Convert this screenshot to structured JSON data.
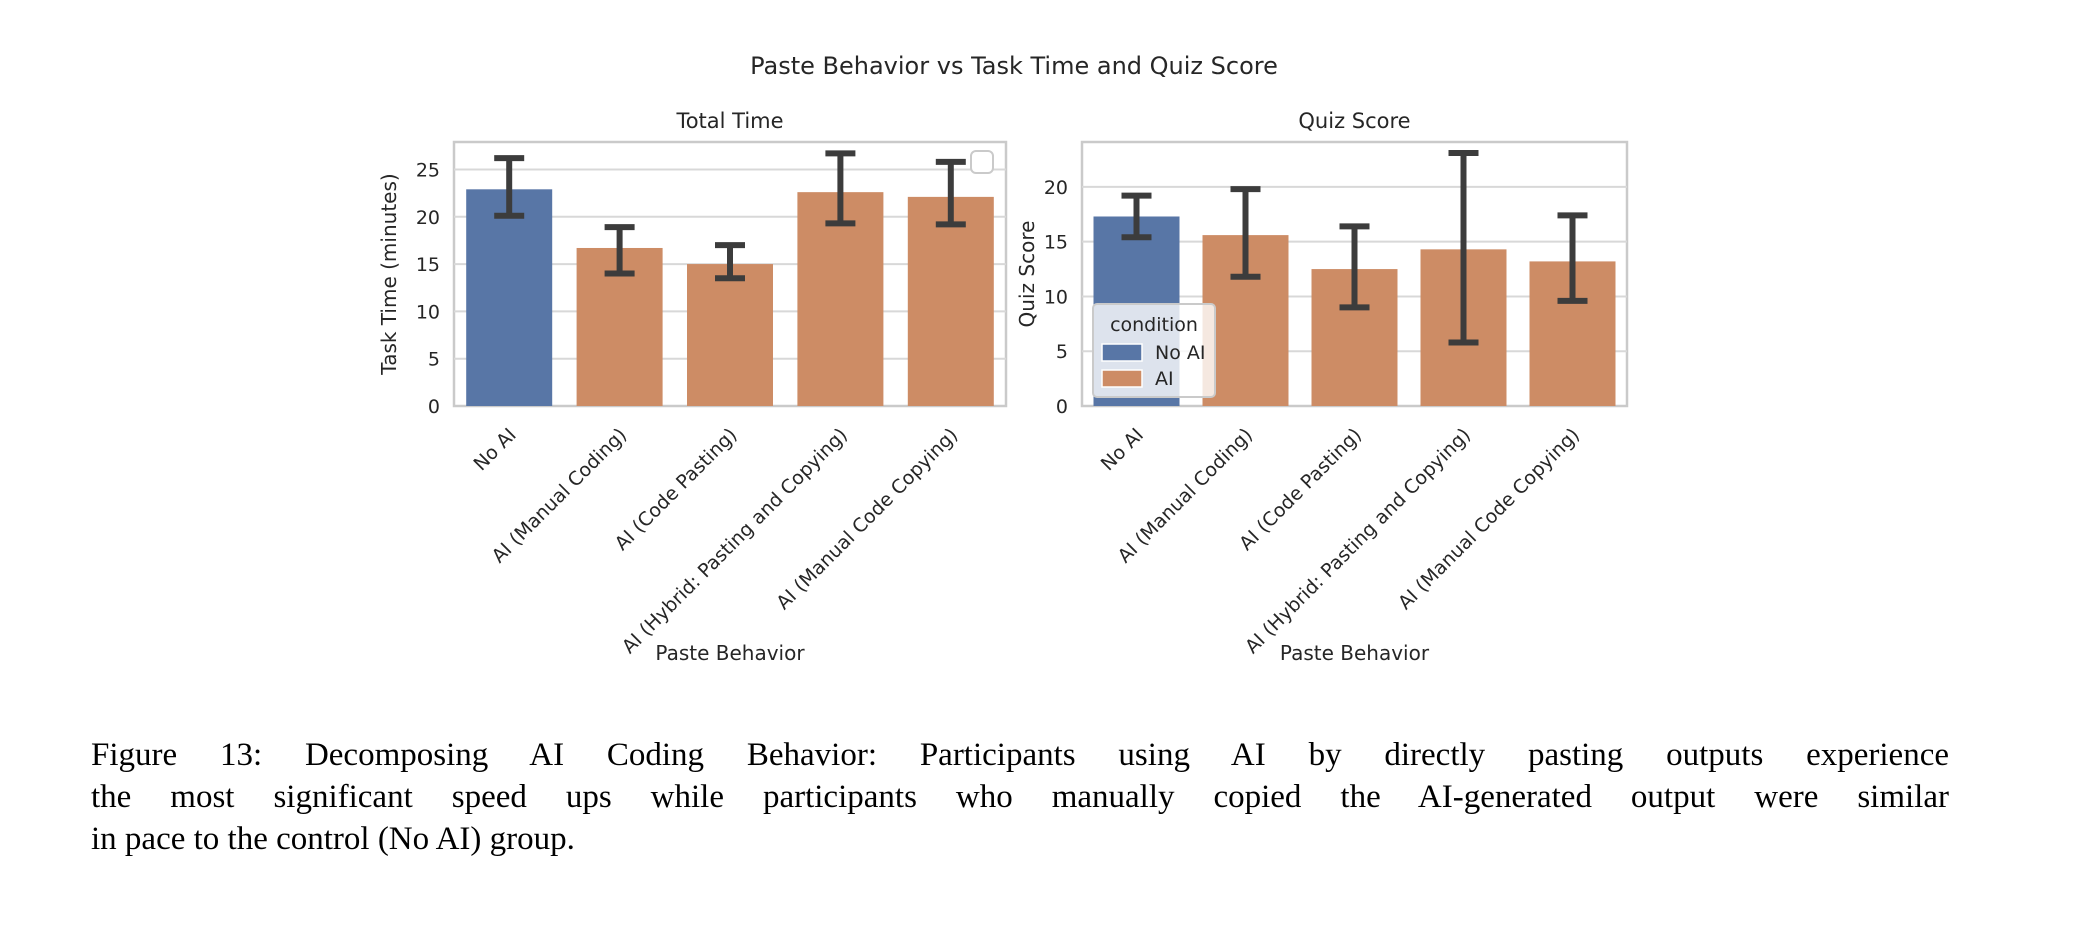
{
  "figure": {
    "suptitle": "Paste Behavior vs Task Time and Quiz Score",
    "caption_lines": [
      "Figure 13: Decomposing AI Coding Behavior: Participants using AI by directly pasting outputs experience",
      "the most significant speed ups while participants who manually copied the AI-generated output were similar",
      "in pace to the control (No AI) group."
    ]
  },
  "colors": {
    "no_ai": "#5876A6",
    "ai": "#CD8C65",
    "error_bar": "#3C3C3C",
    "grid": "#D8D8D8",
    "spine": "#CACACA",
    "chart_text": "#262626",
    "caption_text": "#000000",
    "legend_bg": "#FFFFFF"
  },
  "legend": {
    "title": "condition",
    "items": [
      {
        "label": "No AI",
        "color": "#5876A6"
      },
      {
        "label": "AI",
        "color": "#CD8C65"
      }
    ]
  },
  "chart_data": [
    {
      "id": "total-time",
      "type": "bar",
      "title": "Total Time",
      "xlabel": "Paste Behavior",
      "ylabel": "Task Time (minutes)",
      "categories": [
        "No AI",
        "AI (Manual Coding)",
        "AI (Code Pasting)",
        "AI (Hybrid: Pasting and Copying)",
        "AI (Manual Code Copying)"
      ],
      "condition": [
        "No AI",
        "AI",
        "AI",
        "AI",
        "AI"
      ],
      "values": [
        22.9,
        16.7,
        15.0,
        22.6,
        22.1
      ],
      "error_low": [
        20.1,
        14.0,
        13.5,
        19.3,
        19.2
      ],
      "error_high": [
        26.2,
        18.9,
        17.0,
        26.7,
        25.8
      ],
      "yticks": [
        0,
        5,
        10,
        15,
        20,
        25
      ],
      "ylim": [
        0,
        27.9
      ],
      "grid": true,
      "legend": "empty-box"
    },
    {
      "id": "quiz-score",
      "type": "bar",
      "title": "Quiz Score",
      "xlabel": "Paste Behavior",
      "ylabel": "Quiz Score",
      "categories": [
        "No AI",
        "AI (Manual Coding)",
        "AI (Code Pasting)",
        "AI (Hybrid: Pasting and Copying)",
        "AI (Manual Code Copying)"
      ],
      "condition": [
        "No AI",
        "AI",
        "AI",
        "AI",
        "AI"
      ],
      "values": [
        17.3,
        15.6,
        12.5,
        14.3,
        13.2
      ],
      "error_low": [
        15.4,
        11.8,
        9.0,
        5.8,
        9.6
      ],
      "error_high": [
        19.2,
        19.8,
        16.4,
        23.1,
        17.4
      ],
      "yticks": [
        0,
        5,
        10,
        15,
        20
      ],
      "ylim": [
        0,
        24.1
      ],
      "grid": true,
      "legend": "condition-box"
    }
  ]
}
